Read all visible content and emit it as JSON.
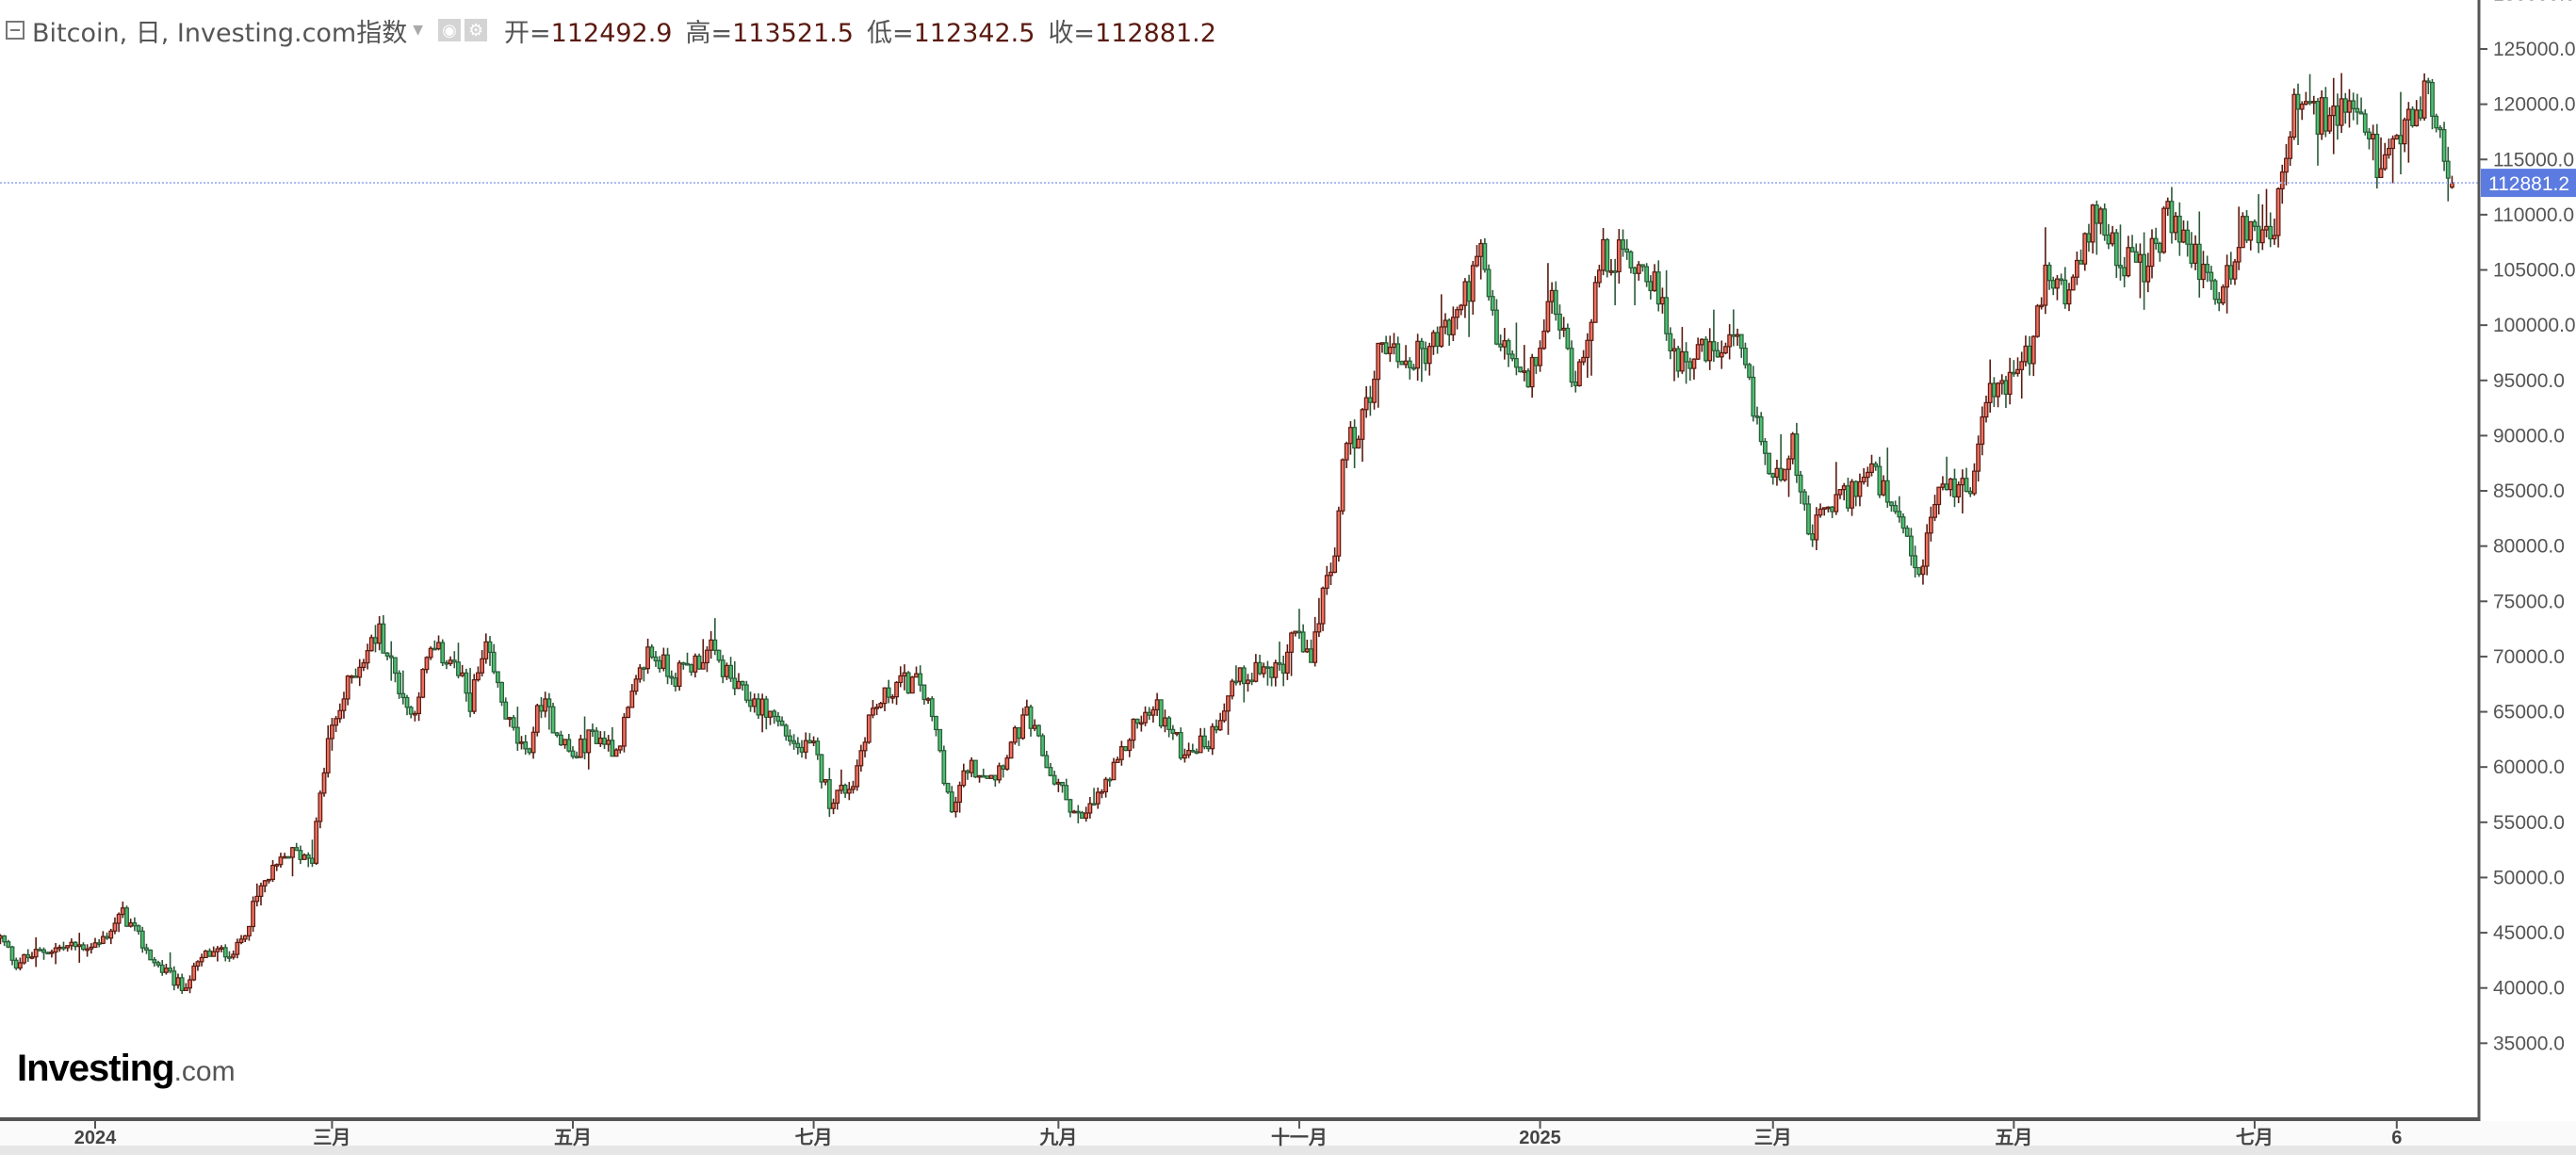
{
  "header": {
    "title": "Bitcoin, 日, Investing.com指数",
    "open_label": "开=",
    "open": "112492.9",
    "high_label": "高=",
    "high": "113521.5",
    "low_label": "低=",
    "low": "112342.5",
    "close_label": "收=",
    "close": "112881.2",
    "icons": [
      "collapse-icon",
      "dropdown-caret-icon",
      "eye-icon",
      "gear-icon"
    ]
  },
  "logo": {
    "main": "Investing",
    "suffix": ".com"
  },
  "colors": {
    "up_fill": "#f07060",
    "up_border": "#5a1a10",
    "down_fill": "#4cc070",
    "down_border": "#2a5a38",
    "last_price": "#5b7be0",
    "price_line": "#a8b8f0"
  },
  "chart_data": {
    "type": "candlestick",
    "interval": "daily",
    "y_axis_side": "right",
    "ylim": [
      35000,
      130000
    ],
    "y_ticks": [
      "130000.0",
      "125000.0",
      "120000.0",
      "115000.0",
      "110000.0",
      "105000.0",
      "100000.0",
      "95000.0",
      "90000.0",
      "85000.0",
      "80000.0",
      "75000.0",
      "70000.0",
      "65000.0",
      "60000.0",
      "55000.0",
      "50000.0",
      "45000.0",
      "40000.0",
      "35000.0"
    ],
    "x_ticks": [
      {
        "date": "2024-01-01",
        "label": "2024"
      },
      {
        "date": "2024-03-01",
        "label": "三月"
      },
      {
        "date": "2024-05-01",
        "label": "五月"
      },
      {
        "date": "2024-07-01",
        "label": "七月"
      },
      {
        "date": "2024-09-01",
        "label": "九月"
      },
      {
        "date": "2024-11-01",
        "label": "十一月"
      },
      {
        "date": "2025-01-01",
        "label": "2025"
      },
      {
        "date": "2025-03-01",
        "label": "三月"
      },
      {
        "date": "2025-05-01",
        "label": "五月"
      },
      {
        "date": "2025-07-01",
        "label": "七月"
      },
      {
        "date": "2025-08-06",
        "label": "6"
      }
    ],
    "last_price": 112881.2,
    "last_price_label": "112881.2",
    "last_candle": {
      "open": 112492.9,
      "high": 113521.5,
      "low": 112342.5,
      "close": 112881.2
    },
    "approx_close_path": [
      [
        "2023-12-08",
        44500
      ],
      [
        "2023-12-12",
        42300
      ],
      [
        "2023-12-20",
        43500
      ],
      [
        "2024-01-02",
        44000
      ],
      [
        "2024-01-08",
        46700
      ],
      [
        "2024-01-16",
        42300
      ],
      [
        "2024-01-23",
        40000
      ],
      [
        "2024-01-29",
        43000
      ],
      [
        "2024-02-06",
        43500
      ],
      [
        "2024-02-12",
        49000
      ],
      [
        "2024-02-19",
        52200
      ],
      [
        "2024-02-25",
        52000
      ],
      [
        "2024-02-29",
        62300
      ],
      [
        "2024-03-06",
        68300
      ],
      [
        "2024-03-13",
        72300
      ],
      [
        "2024-03-17",
        68300
      ],
      [
        "2024-03-21",
        64600
      ],
      [
        "2024-03-26",
        70500
      ],
      [
        "2024-03-31",
        69800
      ],
      [
        "2024-04-05",
        66000
      ],
      [
        "2024-04-09",
        70500
      ],
      [
        "2024-04-15",
        63800
      ],
      [
        "2024-04-19",
        60800
      ],
      [
        "2024-04-23",
        66000
      ],
      [
        "2024-05-01",
        60800
      ],
      [
        "2024-05-06",
        63100
      ],
      [
        "2024-05-12",
        61600
      ],
      [
        "2024-05-20",
        70500
      ],
      [
        "2024-05-27",
        68300
      ],
      [
        "2024-06-05",
        70500
      ],
      [
        "2024-06-12",
        66800
      ],
      [
        "2024-06-21",
        64600
      ],
      [
        "2024-06-27",
        61600
      ],
      [
        "2024-07-01",
        61600
      ],
      [
        "2024-07-05",
        57100
      ],
      [
        "2024-07-11",
        58600
      ],
      [
        "2024-07-15",
        64600
      ],
      [
        "2024-07-22",
        67600
      ],
      [
        "2024-07-28",
        67600
      ],
      [
        "2024-08-01",
        63100
      ],
      [
        "2024-08-05",
        55700
      ],
      [
        "2024-08-09",
        60100
      ],
      [
        "2024-08-16",
        59400
      ],
      [
        "2024-08-24",
        64600
      ],
      [
        "2024-08-30",
        59400
      ],
      [
        "2024-09-07",
        55000
      ],
      [
        "2024-09-16",
        60100
      ],
      [
        "2024-09-20",
        63800
      ],
      [
        "2024-09-26",
        65300
      ],
      [
        "2024-10-02",
        61600
      ],
      [
        "2024-10-09",
        62300
      ],
      [
        "2024-10-15",
        67600
      ],
      [
        "2024-10-21",
        69000
      ],
      [
        "2024-10-28",
        68300
      ],
      [
        "2024-10-30",
        72700
      ],
      [
        "2024-11-04",
        69000
      ],
      [
        "2024-11-07",
        76500
      ],
      [
        "2024-11-10",
        78000
      ],
      [
        "2024-11-12",
        88400
      ],
      [
        "2024-11-17",
        91300
      ],
      [
        "2024-11-22",
        98800
      ],
      [
        "2024-11-28",
        96500
      ],
      [
        "2024-12-04",
        98000
      ],
      [
        "2024-12-10",
        100300
      ],
      [
        "2024-12-17",
        106200
      ],
      [
        "2024-12-21",
        98800
      ],
      [
        "2024-12-29",
        94300
      ],
      [
        "2025-01-04",
        102500
      ],
      [
        "2025-01-10",
        95000
      ],
      [
        "2025-01-17",
        106200
      ],
      [
        "2025-01-23",
        106200
      ],
      [
        "2025-01-29",
        104700
      ],
      [
        "2025-02-04",
        97300
      ],
      [
        "2025-02-13",
        97300
      ],
      [
        "2025-02-20",
        98000
      ],
      [
        "2025-02-25",
        91300
      ],
      [
        "2025-03-01",
        85400
      ],
      [
        "2025-03-06",
        89900
      ],
      [
        "2025-03-10",
        80200
      ],
      [
        "2025-03-14",
        83200
      ],
      [
        "2025-03-20",
        84700
      ],
      [
        "2025-03-26",
        86900
      ],
      [
        "2025-03-31",
        83200
      ],
      [
        "2025-04-07",
        77200
      ],
      [
        "2025-04-12",
        85400
      ],
      [
        "2025-04-20",
        85400
      ],
      [
        "2025-04-23",
        92800
      ],
      [
        "2025-04-29",
        95000
      ],
      [
        "2025-05-05",
        97300
      ],
      [
        "2025-05-09",
        104000
      ],
      [
        "2025-05-16",
        103200
      ],
      [
        "2025-05-22",
        110700
      ],
      [
        "2025-05-28",
        106200
      ],
      [
        "2025-06-03",
        104700
      ],
      [
        "2025-06-09",
        109900
      ],
      [
        "2025-06-16",
        106200
      ],
      [
        "2025-06-22",
        102500
      ],
      [
        "2025-06-28",
        108400
      ],
      [
        "2025-07-06",
        109200
      ],
      [
        "2025-07-11",
        119600
      ],
      [
        "2025-07-17",
        118900
      ],
      [
        "2025-07-23",
        118900
      ],
      [
        "2025-07-29",
        118100
      ],
      [
        "2025-08-02",
        113600
      ],
      [
        "2025-08-07",
        116600
      ],
      [
        "2025-08-13",
        121100
      ],
      [
        "2025-08-17",
        117400
      ],
      [
        "2025-08-20",
        112881.2
      ]
    ]
  }
}
